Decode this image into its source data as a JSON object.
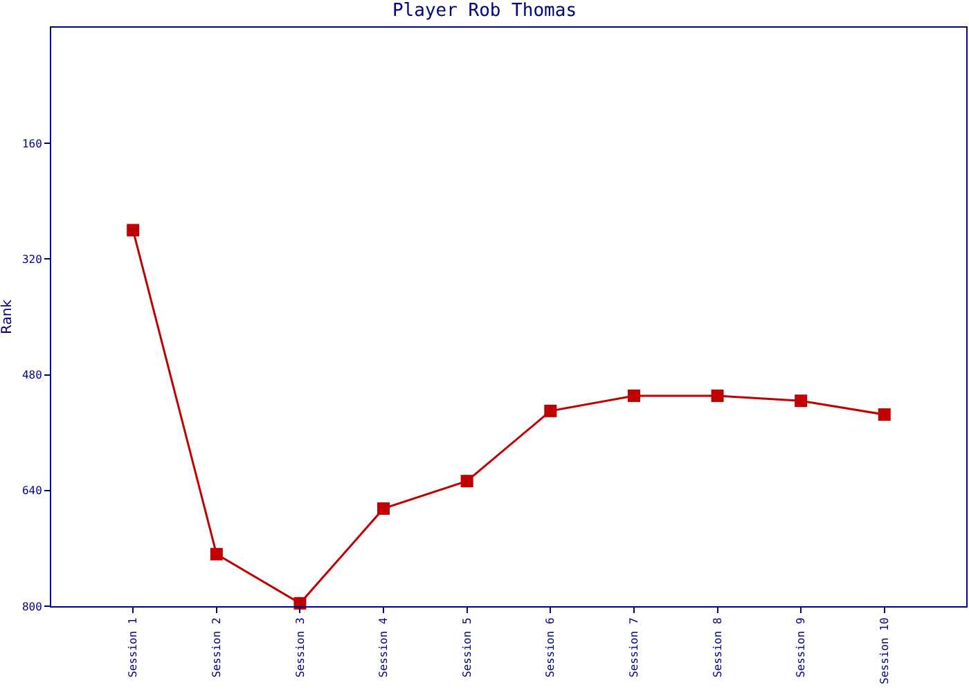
{
  "chart_data": {
    "type": "line",
    "title": "Player Rob Thomas",
    "ylabel": "Rank",
    "categories": [
      "Session 1",
      "Session 2",
      "Session 3",
      "Session 4",
      "Session 5",
      "Session 6",
      "Session 7",
      "Session 8",
      "Session 9",
      "Session 10"
    ],
    "series": [
      {
        "color": "#c00000",
        "values": [
          280,
          728,
          796,
          665,
          627,
          530,
          509,
          509,
          516,
          535
        ]
      }
    ],
    "ylim": [
      800,
      0
    ],
    "yticks": [
      160,
      320,
      480,
      640,
      800
    ],
    "grid": false,
    "marker": "square",
    "line_style": "solid"
  }
}
